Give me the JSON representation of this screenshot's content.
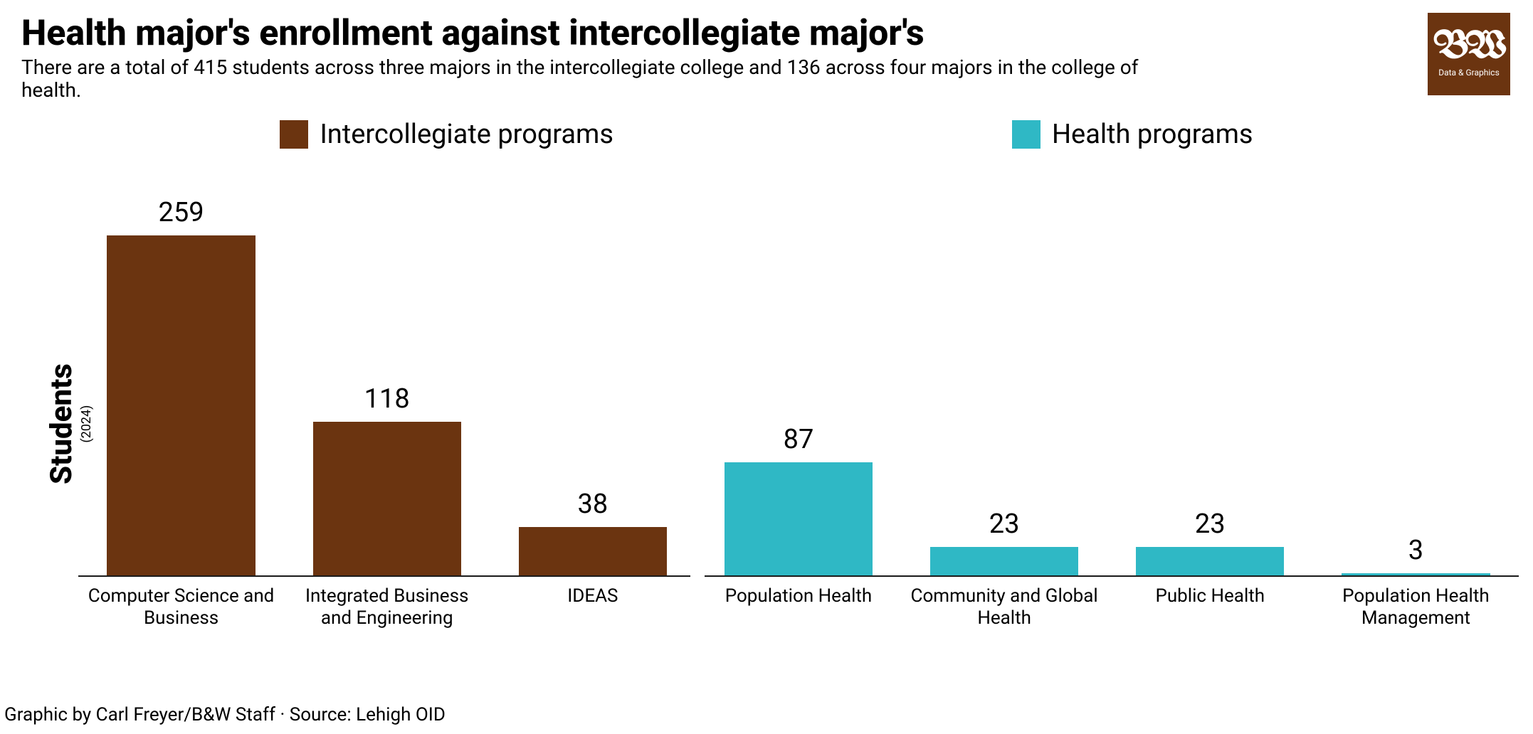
{
  "title": "Health major's enrollment against intercollegiate major's",
  "subtitle": "There are a total of 415 students across three majors in the intercollegiate college and 136 across four majors in the college of health.",
  "logo": {
    "main": "BW",
    "sub": "Data & Graphics"
  },
  "legend": [
    {
      "label": "Intercollegiate programs",
      "color": "#6b3410"
    },
    {
      "label": "Health programs",
      "color": "#2fb8c5"
    }
  ],
  "chart": {
    "type": "bar",
    "y_axis_label": "Students",
    "y_axis_sublabel": "(2024)",
    "ylim": [
      0,
      259
    ],
    "bar_width": 0.72,
    "background_color": "#ffffff",
    "axis_color": "#1a1a1a",
    "value_label_fontsize": 38,
    "category_label_fontsize": 26,
    "groups": [
      {
        "series": "intercollegiate",
        "color": "#6b3410",
        "bars": [
          {
            "category": "Computer Science and Business",
            "value": 259
          },
          {
            "category": "Integrated Business and Engineering",
            "value": 118
          },
          {
            "category": "IDEAS",
            "value": 38
          }
        ]
      },
      {
        "series": "health",
        "color": "#2fb8c5",
        "bars": [
          {
            "category": "Population Health",
            "value": 87
          },
          {
            "category": "Community and Global Health",
            "value": 23
          },
          {
            "category": "Public Health",
            "value": 23
          },
          {
            "category": "Population Health Management",
            "value": 3
          }
        ]
      }
    ]
  },
  "footer": "Graphic by Carl Freyer/B&W Staff · Source: Lehigh OID"
}
